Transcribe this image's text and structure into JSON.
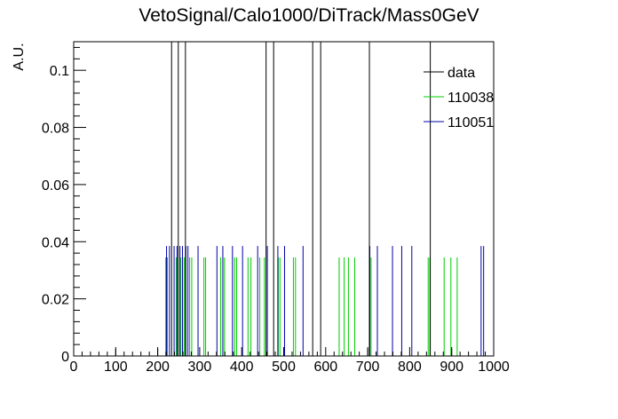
{
  "chart_data": {
    "type": "histogram",
    "title": "VetoSignal/Calo1000/DiTrack/Mass0GeV",
    "xlabel": "",
    "ylabel": "A.U.",
    "xlim": [
      0,
      1000
    ],
    "ylim": [
      0,
      0.11
    ],
    "x_ticks": [
      0,
      100,
      200,
      300,
      400,
      500,
      600,
      700,
      800,
      900,
      1000
    ],
    "y_ticks": [
      0,
      0.02,
      0.04,
      0.06,
      0.08,
      0.1
    ],
    "y_tick_labels": [
      "0",
      "0.02",
      "0.04",
      "0.06",
      "0.08",
      "0.1"
    ],
    "legend_position": "top-right",
    "grid": false,
    "series": [
      {
        "name": "data",
        "color": "#000000",
        "bins": [
          {
            "x": 232,
            "y": 0.11
          },
          {
            "x": 248,
            "y": 0.11
          },
          {
            "x": 265,
            "y": 0.11
          },
          {
            "x": 457,
            "y": 0.11
          },
          {
            "x": 475,
            "y": 0.11
          },
          {
            "x": 568,
            "y": 0.11
          },
          {
            "x": 587,
            "y": 0.11
          },
          {
            "x": 703,
            "y": 0.11
          },
          {
            "x": 848,
            "y": 0.11
          }
        ]
      },
      {
        "name": "110038",
        "color": "#00cc00",
        "bins": [
          {
            "x": 218,
            "y": 0.0345
          },
          {
            "x": 222,
            "y": 0.0345
          },
          {
            "x": 243,
            "y": 0.0345
          },
          {
            "x": 254,
            "y": 0.0345
          },
          {
            "x": 262,
            "y": 0.0345
          },
          {
            "x": 275,
            "y": 0.0345
          },
          {
            "x": 280,
            "y": 0.0345
          },
          {
            "x": 309,
            "y": 0.0345
          },
          {
            "x": 313,
            "y": 0.0345
          },
          {
            "x": 349,
            "y": 0.0345
          },
          {
            "x": 358,
            "y": 0.0345
          },
          {
            "x": 382,
            "y": 0.0345
          },
          {
            "x": 387,
            "y": 0.0345
          },
          {
            "x": 414,
            "y": 0.0345
          },
          {
            "x": 421,
            "y": 0.0345
          },
          {
            "x": 442,
            "y": 0.0345
          },
          {
            "x": 453,
            "y": 0.0345
          },
          {
            "x": 486,
            "y": 0.0345
          },
          {
            "x": 490,
            "y": 0.0345
          },
          {
            "x": 522,
            "y": 0.0345
          },
          {
            "x": 527,
            "y": 0.0345
          },
          {
            "x": 631,
            "y": 0.0345
          },
          {
            "x": 643,
            "y": 0.0345
          },
          {
            "x": 653,
            "y": 0.0345
          },
          {
            "x": 668,
            "y": 0.0345
          },
          {
            "x": 707,
            "y": 0.0345
          },
          {
            "x": 843,
            "y": 0.0345
          },
          {
            "x": 847,
            "y": 0.0345
          },
          {
            "x": 881,
            "y": 0.0345
          },
          {
            "x": 897,
            "y": 0.0345
          },
          {
            "x": 912,
            "y": 0.0345
          }
        ]
      },
      {
        "name": "110051",
        "color": "#0000aa",
        "bins": [
          {
            "x": 220,
            "y": 0.0385
          },
          {
            "x": 227,
            "y": 0.0385
          },
          {
            "x": 238,
            "y": 0.0385
          },
          {
            "x": 245,
            "y": 0.0385
          },
          {
            "x": 252,
            "y": 0.0385
          },
          {
            "x": 258,
            "y": 0.0385
          },
          {
            "x": 266,
            "y": 0.0385
          },
          {
            "x": 271,
            "y": 0.0385
          },
          {
            "x": 295,
            "y": 0.0385
          },
          {
            "x": 340,
            "y": 0.0385
          },
          {
            "x": 354,
            "y": 0.0385
          },
          {
            "x": 377,
            "y": 0.0385
          },
          {
            "x": 401,
            "y": 0.0385
          },
          {
            "x": 437,
            "y": 0.0385
          },
          {
            "x": 460,
            "y": 0.0385
          },
          {
            "x": 485,
            "y": 0.0385
          },
          {
            "x": 501,
            "y": 0.0385
          },
          {
            "x": 545,
            "y": 0.0385
          },
          {
            "x": 704,
            "y": 0.0385
          },
          {
            "x": 722,
            "y": 0.0385
          },
          {
            "x": 758,
            "y": 0.0385
          },
          {
            "x": 780,
            "y": 0.0385
          },
          {
            "x": 804,
            "y": 0.0385
          },
          {
            "x": 969,
            "y": 0.0385
          },
          {
            "x": 975,
            "y": 0.0385
          }
        ]
      }
    ],
    "faint_bins": [
      {
        "x": 100,
        "y": 0.0025
      },
      {
        "x": 200,
        "y": 0.0025
      },
      {
        "x": 700,
        "y": 0.0025
      },
      {
        "x": 900,
        "y": 0.0025
      }
    ]
  }
}
